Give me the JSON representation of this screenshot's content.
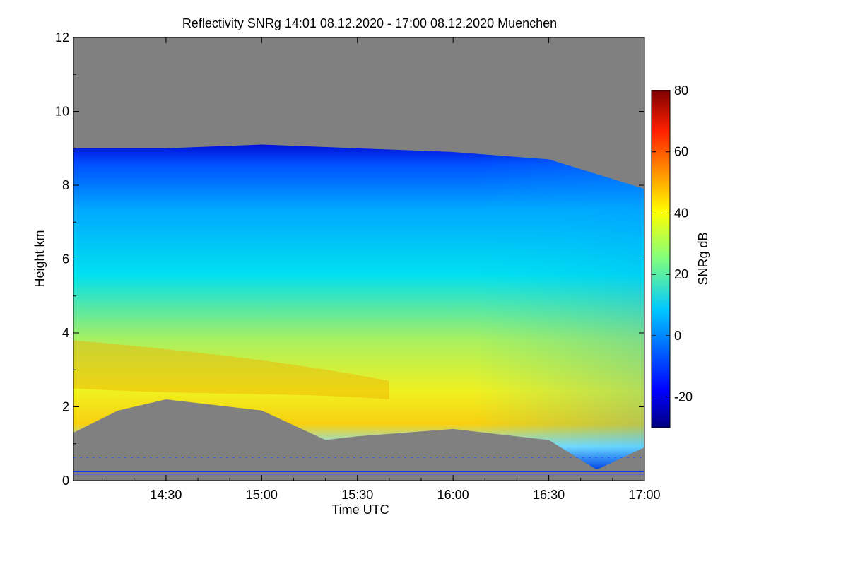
{
  "chart_data": {
    "type": "heatmap",
    "title": "Reflectivity SNRg   14:01 08.12.2020 - 17:00 08.12.2020 Muenchen",
    "xlabel": "Time UTC",
    "ylabel": "Height km",
    "xlim": [
      "14:01",
      "17:00"
    ],
    "ylim": [
      0,
      12
    ],
    "x_ticks": [
      "14:30",
      "15:00",
      "15:30",
      "16:00",
      "16:30",
      "17:00"
    ],
    "y_ticks": [
      "0",
      "2",
      "4",
      "6",
      "8",
      "10",
      "12"
    ],
    "colorbar": {
      "label": "SNRg dB",
      "range": [
        -30,
        80
      ],
      "ticks": [
        "-20",
        "0",
        "20",
        "40",
        "60",
        "80"
      ],
      "colormap": "jet"
    },
    "background_color": "#808080",
    "features": {
      "cloud_top_km": [
        {
          "time": "14:01",
          "km": 9.0
        },
        {
          "time": "14:30",
          "km": 9.0
        },
        {
          "time": "15:00",
          "km": 9.1
        },
        {
          "time": "15:30",
          "km": 9.0
        },
        {
          "time": "16:00",
          "km": 8.9
        },
        {
          "time": "16:30",
          "km": 8.7
        },
        {
          "time": "17:00",
          "km": 7.9
        }
      ],
      "cloud_base_km": [
        {
          "time": "14:01",
          "km": 1.3
        },
        {
          "time": "14:15",
          "km": 1.9
        },
        {
          "time": "14:30",
          "km": 2.2
        },
        {
          "time": "15:00",
          "km": 1.9
        },
        {
          "time": "15:20",
          "km": 1.1
        },
        {
          "time": "15:30",
          "km": 1.2
        },
        {
          "time": "16:00",
          "km": 1.4
        },
        {
          "time": "16:30",
          "km": 1.1
        },
        {
          "time": "16:45",
          "km": 0.3
        },
        {
          "time": "17:00",
          "km": 0.9
        }
      ],
      "max_snr_layer_km": [
        2.5,
        3.2
      ],
      "max_snr_db": 55
    }
  }
}
